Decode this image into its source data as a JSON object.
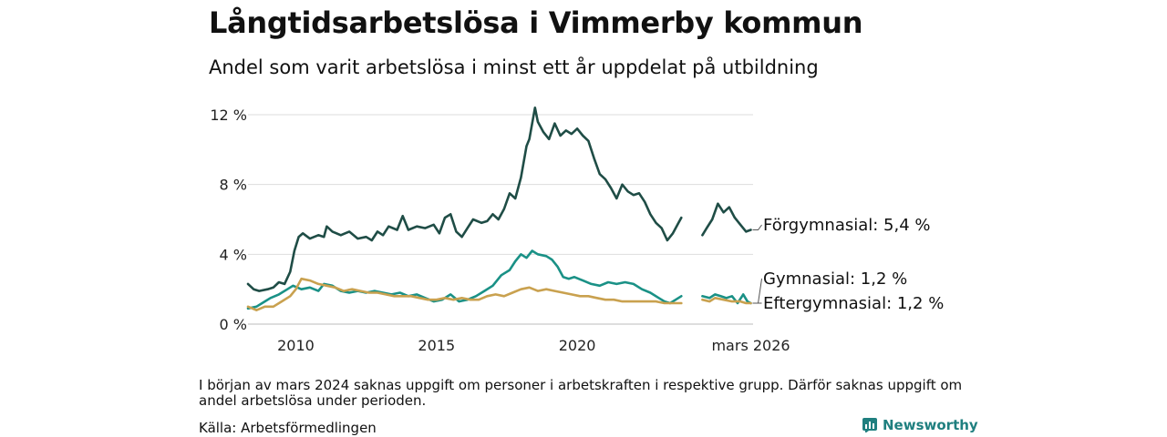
{
  "title": "Långtidsarbetslösa i Vimmerby kommun",
  "subtitle": "Andel som varit arbetslösa i minst ett år uppdelat på utbildning",
  "note": "I början av mars 2024 saknas uppgift om personer i arbetskraften i respektive grupp. Därför saknas uppgift om andel arbetslösa under perioden.",
  "source": "Källa: Arbetsförmedlingen",
  "brand": "Newsworthy",
  "chart_data": {
    "type": "line",
    "title": "Långtidsarbetslösa i Vimmerby kommun",
    "ylabel": "",
    "xlabel": "",
    "xlim": [
      2008.3,
      2026.25
    ],
    "ylim": [
      0,
      12
    ],
    "y_ticks": [
      0,
      4,
      8,
      12
    ],
    "y_tick_labels": [
      "0 %",
      "4 %",
      "8 %",
      "12 %"
    ],
    "x_ticks": [
      2010,
      2015,
      2020,
      2026.17
    ],
    "x_tick_labels": [
      "2010",
      "2015",
      "2020",
      "mars 2026"
    ],
    "grid": true,
    "legend": "inline end-labels right",
    "gap": [
      2023.75,
      2024.5
    ],
    "series": [
      {
        "name": "Förgymnasial",
        "end_label": "Förgymnasial: 5,4 %",
        "color": "#1f4d46",
        "points": [
          [
            2008.3,
            2.3
          ],
          [
            2008.5,
            2.0
          ],
          [
            2008.7,
            1.9
          ],
          [
            2009.0,
            2.0
          ],
          [
            2009.2,
            2.1
          ],
          [
            2009.4,
            2.4
          ],
          [
            2009.6,
            2.3
          ],
          [
            2009.8,
            3.0
          ],
          [
            2009.95,
            4.2
          ],
          [
            2010.1,
            5.0
          ],
          [
            2010.25,
            5.2
          ],
          [
            2010.5,
            4.9
          ],
          [
            2010.8,
            5.1
          ],
          [
            2011.0,
            5.0
          ],
          [
            2011.1,
            5.6
          ],
          [
            2011.3,
            5.3
          ],
          [
            2011.6,
            5.1
          ],
          [
            2011.9,
            5.3
          ],
          [
            2012.2,
            4.9
          ],
          [
            2012.5,
            5.0
          ],
          [
            2012.7,
            4.8
          ],
          [
            2012.9,
            5.3
          ],
          [
            2013.1,
            5.1
          ],
          [
            2013.3,
            5.6
          ],
          [
            2013.6,
            5.4
          ],
          [
            2013.8,
            6.2
          ],
          [
            2014.0,
            5.4
          ],
          [
            2014.3,
            5.6
          ],
          [
            2014.6,
            5.5
          ],
          [
            2014.9,
            5.7
          ],
          [
            2015.1,
            5.2
          ],
          [
            2015.3,
            6.1
          ],
          [
            2015.5,
            6.3
          ],
          [
            2015.7,
            5.3
          ],
          [
            2015.9,
            5.0
          ],
          [
            2016.1,
            5.5
          ],
          [
            2016.3,
            6.0
          ],
          [
            2016.6,
            5.8
          ],
          [
            2016.8,
            5.9
          ],
          [
            2017.0,
            6.3
          ],
          [
            2017.2,
            6.0
          ],
          [
            2017.4,
            6.6
          ],
          [
            2017.6,
            7.5
          ],
          [
            2017.8,
            7.2
          ],
          [
            2018.0,
            8.4
          ],
          [
            2018.2,
            10.2
          ],
          [
            2018.3,
            10.6
          ],
          [
            2018.5,
            12.4
          ],
          [
            2018.6,
            11.6
          ],
          [
            2018.8,
            11.0
          ],
          [
            2019.0,
            10.6
          ],
          [
            2019.2,
            11.5
          ],
          [
            2019.4,
            10.8
          ],
          [
            2019.6,
            11.1
          ],
          [
            2019.8,
            10.9
          ],
          [
            2020.0,
            11.2
          ],
          [
            2020.2,
            10.8
          ],
          [
            2020.4,
            10.5
          ],
          [
            2020.6,
            9.5
          ],
          [
            2020.8,
            8.6
          ],
          [
            2021.0,
            8.3
          ],
          [
            2021.2,
            7.8
          ],
          [
            2021.4,
            7.2
          ],
          [
            2021.6,
            8.0
          ],
          [
            2021.8,
            7.6
          ],
          [
            2022.0,
            7.4
          ],
          [
            2022.2,
            7.5
          ],
          [
            2022.4,
            7.0
          ],
          [
            2022.6,
            6.3
          ],
          [
            2022.8,
            5.8
          ],
          [
            2023.0,
            5.5
          ],
          [
            2023.2,
            4.8
          ],
          [
            2023.4,
            5.2
          ],
          [
            2023.6,
            5.8
          ],
          [
            2023.7,
            6.1
          ],
          null,
          [
            2024.45,
            5.1
          ],
          [
            2024.6,
            5.5
          ],
          [
            2024.8,
            6.0
          ],
          [
            2025.0,
            6.9
          ],
          [
            2025.2,
            6.4
          ],
          [
            2025.4,
            6.7
          ],
          [
            2025.6,
            6.1
          ],
          [
            2025.8,
            5.7
          ],
          [
            2026.0,
            5.3
          ],
          [
            2026.17,
            5.4
          ]
        ]
      },
      {
        "name": "Gymnasial",
        "end_label": "Gymnasial: 1,2 %",
        "color": "#1a9186",
        "points": [
          [
            2008.3,
            0.9
          ],
          [
            2008.6,
            1.0
          ],
          [
            2008.9,
            1.3
          ],
          [
            2009.1,
            1.5
          ],
          [
            2009.4,
            1.7
          ],
          [
            2009.7,
            2.0
          ],
          [
            2009.9,
            2.2
          ],
          [
            2010.2,
            2.0
          ],
          [
            2010.5,
            2.1
          ],
          [
            2010.8,
            1.9
          ],
          [
            2011.0,
            2.3
          ],
          [
            2011.3,
            2.2
          ],
          [
            2011.6,
            1.9
          ],
          [
            2011.9,
            1.8
          ],
          [
            2012.2,
            1.9
          ],
          [
            2012.5,
            1.8
          ],
          [
            2012.8,
            1.9
          ],
          [
            2013.1,
            1.8
          ],
          [
            2013.4,
            1.7
          ],
          [
            2013.7,
            1.8
          ],
          [
            2014.0,
            1.6
          ],
          [
            2014.3,
            1.7
          ],
          [
            2014.6,
            1.5
          ],
          [
            2014.9,
            1.3
          ],
          [
            2015.2,
            1.4
          ],
          [
            2015.5,
            1.7
          ],
          [
            2015.8,
            1.3
          ],
          [
            2016.1,
            1.4
          ],
          [
            2016.4,
            1.6
          ],
          [
            2016.7,
            1.9
          ],
          [
            2017.0,
            2.2
          ],
          [
            2017.3,
            2.8
          ],
          [
            2017.6,
            3.1
          ],
          [
            2017.8,
            3.6
          ],
          [
            2018.0,
            4.0
          ],
          [
            2018.2,
            3.8
          ],
          [
            2018.4,
            4.2
          ],
          [
            2018.6,
            4.0
          ],
          [
            2018.9,
            3.9
          ],
          [
            2019.1,
            3.7
          ],
          [
            2019.3,
            3.3
          ],
          [
            2019.5,
            2.7
          ],
          [
            2019.7,
            2.6
          ],
          [
            2019.9,
            2.7
          ],
          [
            2020.2,
            2.5
          ],
          [
            2020.5,
            2.3
          ],
          [
            2020.8,
            2.2
          ],
          [
            2021.1,
            2.4
          ],
          [
            2021.4,
            2.3
          ],
          [
            2021.7,
            2.4
          ],
          [
            2022.0,
            2.3
          ],
          [
            2022.3,
            2.0
          ],
          [
            2022.6,
            1.8
          ],
          [
            2022.9,
            1.5
          ],
          [
            2023.1,
            1.3
          ],
          [
            2023.3,
            1.2
          ],
          [
            2023.5,
            1.4
          ],
          [
            2023.7,
            1.6
          ],
          null,
          [
            2024.45,
            1.6
          ],
          [
            2024.7,
            1.5
          ],
          [
            2024.9,
            1.7
          ],
          [
            2025.1,
            1.6
          ],
          [
            2025.3,
            1.5
          ],
          [
            2025.5,
            1.6
          ],
          [
            2025.7,
            1.2
          ],
          [
            2025.9,
            1.7
          ],
          [
            2026.05,
            1.3
          ],
          [
            2026.17,
            1.2
          ]
        ]
      },
      {
        "name": "Eftergymnasial",
        "end_label": "Eftergymnasial: 1,2 %",
        "color": "#c9a14f",
        "points": [
          [
            2008.3,
            1.0
          ],
          [
            2008.6,
            0.8
          ],
          [
            2008.9,
            1.0
          ],
          [
            2009.2,
            1.0
          ],
          [
            2009.5,
            1.3
          ],
          [
            2009.8,
            1.6
          ],
          [
            2010.0,
            2.0
          ],
          [
            2010.2,
            2.6
          ],
          [
            2010.5,
            2.5
          ],
          [
            2010.8,
            2.3
          ],
          [
            2011.1,
            2.2
          ],
          [
            2011.4,
            2.1
          ],
          [
            2011.7,
            1.9
          ],
          [
            2012.0,
            2.0
          ],
          [
            2012.3,
            1.9
          ],
          [
            2012.6,
            1.8
          ],
          [
            2012.9,
            1.8
          ],
          [
            2013.2,
            1.7
          ],
          [
            2013.5,
            1.6
          ],
          [
            2013.8,
            1.6
          ],
          [
            2014.1,
            1.6
          ],
          [
            2014.4,
            1.5
          ],
          [
            2014.7,
            1.4
          ],
          [
            2015.0,
            1.4
          ],
          [
            2015.3,
            1.5
          ],
          [
            2015.6,
            1.4
          ],
          [
            2015.9,
            1.5
          ],
          [
            2016.2,
            1.4
          ],
          [
            2016.5,
            1.4
          ],
          [
            2016.8,
            1.6
          ],
          [
            2017.1,
            1.7
          ],
          [
            2017.4,
            1.6
          ],
          [
            2017.7,
            1.8
          ],
          [
            2018.0,
            2.0
          ],
          [
            2018.3,
            2.1
          ],
          [
            2018.6,
            1.9
          ],
          [
            2018.9,
            2.0
          ],
          [
            2019.2,
            1.9
          ],
          [
            2019.5,
            1.8
          ],
          [
            2019.8,
            1.7
          ],
          [
            2020.1,
            1.6
          ],
          [
            2020.4,
            1.6
          ],
          [
            2020.7,
            1.5
          ],
          [
            2021.0,
            1.4
          ],
          [
            2021.3,
            1.4
          ],
          [
            2021.6,
            1.3
          ],
          [
            2021.9,
            1.3
          ],
          [
            2022.2,
            1.3
          ],
          [
            2022.5,
            1.3
          ],
          [
            2022.8,
            1.3
          ],
          [
            2023.1,
            1.2
          ],
          [
            2023.4,
            1.2
          ],
          [
            2023.7,
            1.2
          ],
          null,
          [
            2024.45,
            1.4
          ],
          [
            2024.7,
            1.3
          ],
          [
            2024.9,
            1.5
          ],
          [
            2025.2,
            1.4
          ],
          [
            2025.5,
            1.3
          ],
          [
            2025.8,
            1.3
          ],
          [
            2026.0,
            1.2
          ],
          [
            2026.17,
            1.2
          ]
        ]
      }
    ]
  }
}
